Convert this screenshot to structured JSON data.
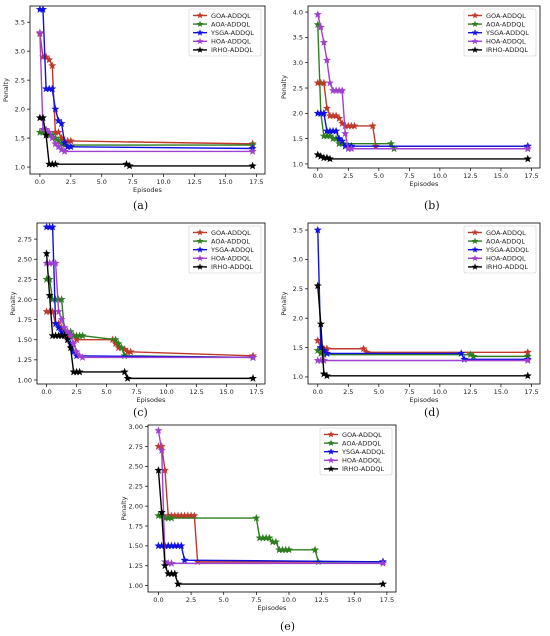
{
  "figure": {
    "captions": [
      "(a)",
      "(b)",
      "(c)",
      "(d)",
      "(e)"
    ]
  },
  "colors": {
    "GOA-ADDQL": "#c0392b",
    "AOA-ADDQL": "#2e7d1f",
    "YSGA-ADDQL": "#1010e0",
    "HOA-ADDQL": "#a040d0",
    "IRHO-ADDQL": "#000000"
  },
  "chart_data": [
    {
      "type": "line",
      "caption": "(a)",
      "xlabel": "Episodes",
      "ylabel": "Penalty",
      "xlim": [
        -0.8,
        18.2
      ],
      "ylim": [
        0.88,
        3.78
      ],
      "xticks": [
        "0.0",
        "2.5",
        "5.0",
        "7.5",
        "10.0",
        "12.5",
        "15.0",
        "17.5"
      ],
      "yticks": [
        "1.0",
        "1.5",
        "2.0",
        "2.5",
        "3.0",
        "3.5"
      ],
      "legend": "top-right",
      "series": [
        {
          "name": "GOA-ADDQL",
          "x": [
            0,
            0.25,
            0.5,
            0.75,
            1.0,
            1.25,
            1.5,
            1.75,
            2.0,
            2.25,
            2.5,
            17.2
          ],
          "y": [
            3.3,
            2.9,
            2.9,
            2.85,
            2.75,
            1.6,
            1.6,
            1.5,
            1.45,
            1.45,
            1.45,
            1.4
          ]
        },
        {
          "name": "AOA-ADDQL",
          "x": [
            0,
            0.25,
            0.5,
            0.75,
            1.0,
            1.25,
            1.5,
            1.75,
            2.0,
            17.2
          ],
          "y": [
            1.6,
            1.6,
            1.6,
            1.55,
            1.55,
            1.5,
            1.45,
            1.4,
            1.38,
            1.38
          ]
        },
        {
          "name": "YSGA-ADDQL",
          "x": [
            0,
            0.25,
            0.5,
            0.75,
            1.0,
            1.25,
            1.5,
            1.75,
            2.0,
            2.25,
            2.5,
            17.2
          ],
          "y": [
            3.72,
            3.72,
            2.35,
            2.35,
            2.35,
            2.0,
            1.8,
            1.75,
            1.42,
            1.35,
            1.35,
            1.32
          ]
        },
        {
          "name": "HOA-ADDQL",
          "x": [
            0,
            0.25,
            0.5,
            0.75,
            1.0,
            1.25,
            1.5,
            1.75,
            2.0,
            17.2
          ],
          "y": [
            3.32,
            1.65,
            1.65,
            1.6,
            1.5,
            1.4,
            1.35,
            1.3,
            1.27,
            1.27
          ]
        },
        {
          "name": "IRHO-ADDQL",
          "x": [
            0,
            0.25,
            0.5,
            0.75,
            1.0,
            1.25,
            7.0,
            7.25,
            17.2
          ],
          "y": [
            1.85,
            1.85,
            1.55,
            1.05,
            1.05,
            1.05,
            1.05,
            1.02,
            1.02
          ]
        }
      ]
    },
    {
      "type": "line",
      "caption": "(b)",
      "xlabel": "Episodes",
      "ylabel": "Penalty",
      "xlim": [
        -0.8,
        18.2
      ],
      "ylim": [
        0.92,
        4.12
      ],
      "xticks": [
        "0.0",
        "2.5",
        "5.0",
        "7.5",
        "10.0",
        "12.5",
        "15.0",
        "17.5"
      ],
      "yticks": [
        "1.0",
        "1.5",
        "2.0",
        "2.5",
        "3.0",
        "3.5",
        "4.0"
      ],
      "legend": "top-right",
      "series": [
        {
          "name": "GOA-ADDQL",
          "x": [
            0,
            0.25,
            0.5,
            0.75,
            1.0,
            1.25,
            1.5,
            1.75,
            2.0,
            2.25,
            2.5,
            2.75,
            3.0,
            4.5,
            4.75,
            17.2
          ],
          "y": [
            2.6,
            2.6,
            2.6,
            2.1,
            1.95,
            1.95,
            1.95,
            1.9,
            1.8,
            1.75,
            1.75,
            1.75,
            1.75,
            1.75,
            1.35,
            1.35
          ]
        },
        {
          "name": "AOA-ADDQL",
          "x": [
            0,
            0.25,
            0.5,
            0.75,
            1.0,
            1.25,
            1.5,
            1.75,
            2.0,
            6.0,
            6.25,
            17.2
          ],
          "y": [
            3.75,
            2.0,
            1.55,
            1.55,
            1.55,
            1.5,
            1.5,
            1.4,
            1.4,
            1.4,
            1.3,
            1.3
          ]
        },
        {
          "name": "YSGA-ADDQL",
          "x": [
            0,
            0.25,
            0.5,
            0.75,
            1.0,
            1.25,
            1.5,
            1.75,
            2.0,
            2.25,
            2.5,
            2.75,
            17.2
          ],
          "y": [
            2.0,
            2.0,
            2.0,
            1.65,
            1.65,
            1.65,
            1.65,
            1.5,
            1.45,
            1.35,
            1.35,
            1.35,
            1.35
          ]
        },
        {
          "name": "HOA-ADDQL",
          "x": [
            0,
            0.25,
            0.5,
            0.75,
            1.0,
            1.25,
            1.5,
            1.75,
            2.0,
            2.25,
            2.5,
            2.75,
            17.2
          ],
          "y": [
            3.95,
            3.7,
            3.4,
            3.05,
            2.6,
            2.45,
            2.45,
            2.45,
            2.45,
            1.6,
            1.3,
            1.3,
            1.3
          ]
        },
        {
          "name": "IRHO-ADDQL",
          "x": [
            0,
            0.25,
            0.5,
            0.75,
            1.0,
            17.2
          ],
          "y": [
            1.18,
            1.15,
            1.12,
            1.12,
            1.1,
            1.1
          ]
        }
      ]
    },
    {
      "type": "line",
      "caption": "(c)",
      "xlabel": "Episodes",
      "ylabel": "Penalty",
      "xlim": [
        -0.8,
        18.2
      ],
      "ylim": [
        0.95,
        2.95
      ],
      "xticks": [
        "0.0",
        "2.5",
        "5.0",
        "7.5",
        "10.0",
        "12.5",
        "15.0",
        "17.5"
      ],
      "yticks": [
        "1.00",
        "1.25",
        "1.50",
        "1.75",
        "2.00",
        "2.25",
        "2.50",
        "2.75"
      ],
      "legend": "top-right",
      "series": [
        {
          "name": "GOA-ADDQL",
          "x": [
            0,
            0.25,
            0.5,
            0.75,
            1.0,
            1.25,
            1.5,
            1.75,
            2.0,
            2.25,
            2.5,
            5.5,
            5.75,
            6.0,
            6.25,
            6.5,
            6.75,
            7.0,
            17.2
          ],
          "y": [
            1.85,
            1.85,
            1.85,
            1.7,
            1.7,
            1.65,
            1.6,
            1.55,
            1.55,
            1.55,
            1.5,
            1.5,
            1.45,
            1.4,
            1.4,
            1.38,
            1.35,
            1.35,
            1.3
          ]
        },
        {
          "name": "AOA-ADDQL",
          "x": [
            0,
            0.25,
            0.5,
            0.75,
            1.0,
            1.25,
            1.5,
            1.75,
            2.0,
            2.25,
            2.5,
            2.75,
            3.0,
            5.75,
            6.0,
            6.25,
            6.5,
            17.2
          ],
          "y": [
            2.25,
            2.25,
            2.0,
            2.0,
            2.0,
            2.0,
            1.6,
            1.6,
            1.6,
            1.55,
            1.55,
            1.55,
            1.55,
            1.5,
            1.45,
            1.4,
            1.3,
            1.28
          ]
        },
        {
          "name": "YSGA-ADDQL",
          "x": [
            0,
            0.25,
            0.5,
            0.75,
            1.0,
            1.25,
            1.5,
            1.75,
            2.0,
            2.25,
            2.5,
            17.2
          ],
          "y": [
            2.9,
            2.9,
            2.9,
            1.7,
            1.65,
            1.6,
            1.55,
            1.5,
            1.45,
            1.35,
            1.3,
            1.28
          ]
        },
        {
          "name": "HOA-ADDQL",
          "x": [
            0,
            0.25,
            0.5,
            0.75,
            1.0,
            1.25,
            1.5,
            1.75,
            2.0,
            2.25,
            2.5,
            2.75,
            3.0,
            17.2
          ],
          "y": [
            2.45,
            2.45,
            2.45,
            2.45,
            1.85,
            1.75,
            1.65,
            1.6,
            1.55,
            1.45,
            1.35,
            1.3,
            1.28,
            1.28
          ]
        },
        {
          "name": "IRHO-ADDQL",
          "x": [
            0,
            0.25,
            0.5,
            0.75,
            1.0,
            1.25,
            1.5,
            1.75,
            2.0,
            2.25,
            2.5,
            2.75,
            6.5,
            6.75,
            17.2
          ],
          "y": [
            2.57,
            2.05,
            1.55,
            1.55,
            1.55,
            1.55,
            1.55,
            1.5,
            1.4,
            1.1,
            1.1,
            1.1,
            1.1,
            1.02,
            1.02
          ]
        }
      ]
    },
    {
      "type": "line",
      "caption": "(d)",
      "xlabel": "Episodes",
      "ylabel": "Penalty",
      "xlim": [
        -0.8,
        18.2
      ],
      "ylim": [
        0.88,
        3.62
      ],
      "xticks": [
        "0.0",
        "2.5",
        "5.0",
        "7.5",
        "10.0",
        "12.5",
        "15.0",
        "17.5"
      ],
      "yticks": [
        "1.0",
        "1.5",
        "2.0",
        "2.5",
        "3.0",
        "3.5"
      ],
      "legend": "top-right",
      "series": [
        {
          "name": "GOA-ADDQL",
          "x": [
            0,
            0.25,
            0.5,
            0.75,
            3.75,
            4.0,
            17.2
          ],
          "y": [
            1.62,
            1.5,
            1.48,
            1.48,
            1.48,
            1.42,
            1.42
          ]
        },
        {
          "name": "AOA-ADDQL",
          "x": [
            0,
            0.25,
            0.5,
            12.5,
            12.75,
            17.2
          ],
          "y": [
            1.45,
            1.4,
            1.38,
            1.38,
            1.35,
            1.35
          ]
        },
        {
          "name": "YSGA-ADDQL",
          "x": [
            0,
            0.25,
            0.5,
            0.75,
            11.75,
            12.0,
            17.2
          ],
          "y": [
            3.5,
            1.5,
            1.45,
            1.4,
            1.4,
            1.3,
            1.3
          ]
        },
        {
          "name": "HOA-ADDQL",
          "x": [
            0,
            0.25,
            0.5,
            17.2
          ],
          "y": [
            1.28,
            1.28,
            1.28,
            1.28
          ]
        },
        {
          "name": "IRHO-ADDQL",
          "x": [
            0,
            0.25,
            0.5,
            0.75,
            17.2
          ],
          "y": [
            2.55,
            1.9,
            1.05,
            1.02,
            1.02
          ]
        }
      ]
    },
    {
      "type": "line",
      "caption": "(e)",
      "xlabel": "Episodes",
      "ylabel": "Penalty",
      "xlim": [
        -0.8,
        18.2
      ],
      "ylim": [
        0.92,
        3.02
      ],
      "xticks": [
        "0.0",
        "2.5",
        "5.0",
        "7.5",
        "10.0",
        "12.5",
        "15.0",
        "17.5"
      ],
      "yticks": [
        "1.00",
        "1.25",
        "1.50",
        "1.75",
        "2.00",
        "2.25",
        "2.50",
        "2.75",
        "3.00"
      ],
      "legend": "top-right",
      "series": [
        {
          "name": "GOA-ADDQL",
          "x": [
            0,
            0.25,
            0.5,
            0.75,
            1.0,
            1.25,
            1.5,
            1.75,
            2.0,
            2.25,
            2.5,
            2.75,
            3.0,
            17.2
          ],
          "y": [
            2.75,
            2.75,
            2.45,
            1.88,
            1.88,
            1.88,
            1.88,
            1.88,
            1.88,
            1.88,
            1.88,
            1.88,
            1.3,
            1.3
          ]
        },
        {
          "name": "AOA-ADDQL",
          "x": [
            0,
            0.25,
            0.5,
            0.75,
            1.0,
            7.5,
            7.75,
            8.0,
            8.25,
            8.5,
            8.75,
            9.0,
            9.25,
            9.5,
            9.75,
            10.0,
            12.0,
            12.25,
            17.2
          ],
          "y": [
            1.88,
            1.88,
            1.85,
            1.85,
            1.85,
            1.85,
            1.6,
            1.6,
            1.6,
            1.6,
            1.55,
            1.55,
            1.45,
            1.45,
            1.45,
            1.45,
            1.45,
            1.3,
            1.3
          ]
        },
        {
          "name": "YSGA-ADDQL",
          "x": [
            0,
            0.25,
            0.5,
            0.75,
            1.0,
            1.25,
            1.5,
            1.75,
            2.0,
            17.2
          ],
          "y": [
            1.5,
            1.5,
            1.5,
            1.5,
            1.5,
            1.5,
            1.5,
            1.5,
            1.32,
            1.3
          ]
        },
        {
          "name": "HOA-ADDQL",
          "x": [
            0,
            0.25,
            0.5,
            0.75,
            1.0,
            17.2
          ],
          "y": [
            2.95,
            2.7,
            1.3,
            1.28,
            1.28,
            1.28
          ]
        },
        {
          "name": "IRHO-ADDQL",
          "x": [
            0,
            0.25,
            0.5,
            0.75,
            1.0,
            1.25,
            1.5,
            17.2
          ],
          "y": [
            2.45,
            1.92,
            1.25,
            1.15,
            1.15,
            1.15,
            1.02,
            1.02
          ]
        }
      ]
    }
  ]
}
